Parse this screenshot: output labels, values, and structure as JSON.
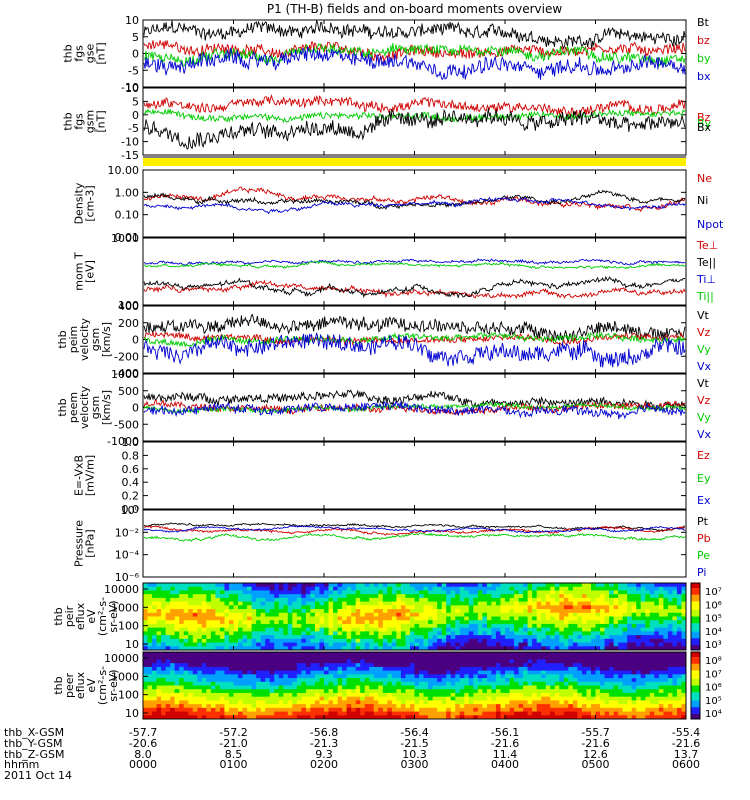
{
  "chart_data": {
    "type": "line",
    "title": "P1  (TH-B) fields and on-board moments overview",
    "date": "2011 Oct 14",
    "panels": [
      {
        "id": "fgs-gse",
        "ylabel": [
          "thb",
          "fgs",
          "gse",
          "[nT]"
        ],
        "yscale": "linear",
        "ylim": [
          -10,
          10
        ],
        "ticks": [
          "10",
          "5",
          "0",
          "-5",
          "-10"
        ],
        "series": [
          {
            "name": "Bt",
            "color": "#000000",
            "base": 6,
            "amp": 3
          },
          {
            "name": "bz",
            "color": "#d00000",
            "base": 1,
            "amp": 2.5
          },
          {
            "name": "by",
            "color": "#00cc00",
            "base": -0.5,
            "amp": 2.5
          },
          {
            "name": "bx",
            "color": "#0000d0",
            "base": -3,
            "amp": 3.5
          }
        ]
      },
      {
        "id": "fgs-gsm",
        "ylabel": [
          "thb",
          "fgs",
          "gsm",
          "[nT]"
        ],
        "yscale": "linear",
        "ylim": [
          -17,
          10
        ],
        "ticks": [
          "10",
          "5",
          "0",
          "-5",
          "-10",
          "-15"
        ],
        "series": [
          {
            "name": "Bz",
            "color": "#d00000",
            "base": 3,
            "amp": 3
          },
          {
            "name": "By",
            "color": "#00cc00",
            "base": -1,
            "amp": 2
          },
          {
            "name": "Bx",
            "color": "#000000",
            "base": -5,
            "amp": 5
          }
        ]
      },
      {
        "id": "density",
        "ylabel": [
          "Density",
          "[cm-3]"
        ],
        "yscale": "log",
        "ylim": [
          0.01,
          10
        ],
        "ticks": [
          "10.00",
          "1.00",
          "0.10",
          "0.01"
        ],
        "series": [
          {
            "name": "Ne",
            "color": "#d00000",
            "base": 0.5,
            "amp": 0.4
          },
          {
            "name": "Ni",
            "color": "#000000",
            "base": 0.45,
            "amp": 0.35
          },
          {
            "name": "Npot",
            "color": "#0000d0",
            "base": 0.3,
            "amp": 0.3
          }
        ]
      },
      {
        "id": "temperature",
        "ylabel": [
          "mom T",
          "[eV]"
        ],
        "yscale": "log",
        "ylim": [
          20,
          3000
        ],
        "ticks": [
          "1000",
          "100"
        ],
        "series": [
          {
            "name": "Te⊥",
            "color": "#d00000",
            "base": 60,
            "amp": 0.3
          },
          {
            "name": "Te||",
            "color": "#000000",
            "base": 75,
            "amp": 0.3
          },
          {
            "name": "Ti⊥",
            "color": "#0000d0",
            "base": 500,
            "amp": 0.15
          },
          {
            "name": "Ti||",
            "color": "#00cc00",
            "base": 400,
            "amp": 0.15
          }
        ]
      },
      {
        "id": "peim-velocity",
        "ylabel": [
          "thb",
          "peim",
          "velocity",
          "gsm",
          "[km/s]"
        ],
        "yscale": "linear",
        "ylim": [
          -400,
          400
        ],
        "ticks": [
          "400",
          "200",
          "0",
          "-200",
          "-400"
        ],
        "series": [
          {
            "name": "Vt",
            "color": "#000000",
            "base": 150,
            "amp": 120
          },
          {
            "name": "Vz",
            "color": "#d00000",
            "base": 20,
            "amp": 60
          },
          {
            "name": "Vy",
            "color": "#00cc00",
            "base": 0,
            "amp": 60
          },
          {
            "name": "Vx",
            "color": "#0000d0",
            "base": -100,
            "amp": 150
          }
        ]
      },
      {
        "id": "peem-velocity",
        "ylabel": [
          "thb",
          "peem",
          "velocity",
          "gsm",
          "[km/s]"
        ],
        "yscale": "linear",
        "ylim": [
          -1000,
          1000
        ],
        "ticks": [
          "1000",
          "500",
          "0",
          "-500",
          "-1000"
        ],
        "series": [
          {
            "name": "Vt",
            "color": "#000000",
            "base": 250,
            "amp": 200
          },
          {
            "name": "Vz",
            "color": "#d00000",
            "base": 0,
            "amp": 150
          },
          {
            "name": "Vy",
            "color": "#00cc00",
            "base": 0,
            "amp": 100
          },
          {
            "name": "Vx",
            "color": "#0000d0",
            "base": -100,
            "amp": 200
          }
        ]
      },
      {
        "id": "efield",
        "ylabel": [
          "E=-VxB",
          "[mV/m]"
        ],
        "yscale": "linear",
        "ylim": [
          0,
          1
        ],
        "ticks": [
          "1.0",
          "0.8",
          "0.6",
          "0.4",
          "0.2",
          "0.0"
        ],
        "series": [
          {
            "name": "Ez",
            "color": "#d00000",
            "base": null,
            "amp": 0
          },
          {
            "name": "Ey",
            "color": "#00cc00",
            "base": null,
            "amp": 0
          },
          {
            "name": "Ex",
            "color": "#0000d0",
            "base": null,
            "amp": 0
          }
        ]
      },
      {
        "id": "pressure",
        "ylabel": [
          "Pressure",
          "[nPa]"
        ],
        "yscale": "log",
        "ylim": [
          1e-06,
          1
        ],
        "ticks": [
          "10⁰",
          "10⁻²",
          "10⁻⁴",
          "10⁻⁶"
        ],
        "series": [
          {
            "name": "Pt",
            "color": "#000000",
            "base": 0.04,
            "amp": 0.3
          },
          {
            "name": "Pb",
            "color": "#d00000",
            "base": 0.015,
            "amp": 0.4
          },
          {
            "name": "Pe",
            "color": "#00cc00",
            "base": 0.004,
            "amp": 0.4
          },
          {
            "name": "Pi",
            "color": "#0000d0",
            "base": 0.02,
            "amp": 0.3
          }
        ]
      }
    ],
    "spectrograms": [
      {
        "id": "peir",
        "type": "heatmap",
        "ylabel": [
          "thb",
          "peir",
          "eflux",
          "eV",
          "(cm²-s-",
          "sr-eV)"
        ],
        "ylim": [
          10,
          20000
        ],
        "ticks": [
          "10000",
          "1000",
          "100",
          "10"
        ],
        "cbar": [
          "10⁷",
          "10⁶",
          "10⁵",
          "10⁴",
          "10³"
        ]
      },
      {
        "id": "peer",
        "type": "heatmap",
        "ylabel": [
          "thb",
          "peer",
          "eflux",
          "eV",
          "(cm²-s-",
          "sr-eV)"
        ],
        "ylim": [
          10,
          20000
        ],
        "ticks": [
          "10000",
          "1000",
          "100",
          "10"
        ],
        "cbar": [
          "10⁸",
          "10⁷",
          "10⁶",
          "10⁵",
          "10⁴"
        ]
      }
    ],
    "x_axis": {
      "ticks": [
        {
          "hhmm": "0000",
          "x": "-57.7",
          "y": "-20.6",
          "z": "8.0"
        },
        {
          "hhmm": "0100",
          "x": "-57.2",
          "y": "-21.0",
          "z": "8.5"
        },
        {
          "hhmm": "0200",
          "x": "-56.8",
          "y": "-21.3",
          "z": "9.3"
        },
        {
          "hhmm": "0300",
          "x": "-56.4",
          "y": "-21.5",
          "z": "10.3"
        },
        {
          "hhmm": "0400",
          "x": "-56.1",
          "y": "-21.6",
          "z": "11.4"
        },
        {
          "hhmm": "0500",
          "x": "-55.7",
          "y": "-21.6",
          "z": "12.6"
        },
        {
          "hhmm": "0600",
          "x": "-55.4",
          "y": "-21.6",
          "z": "13.7"
        }
      ],
      "row_labels": [
        "thb_X-GSM",
        "thb_Y-GSM",
        "thb_Z-GSM",
        "hhmm"
      ]
    }
  }
}
